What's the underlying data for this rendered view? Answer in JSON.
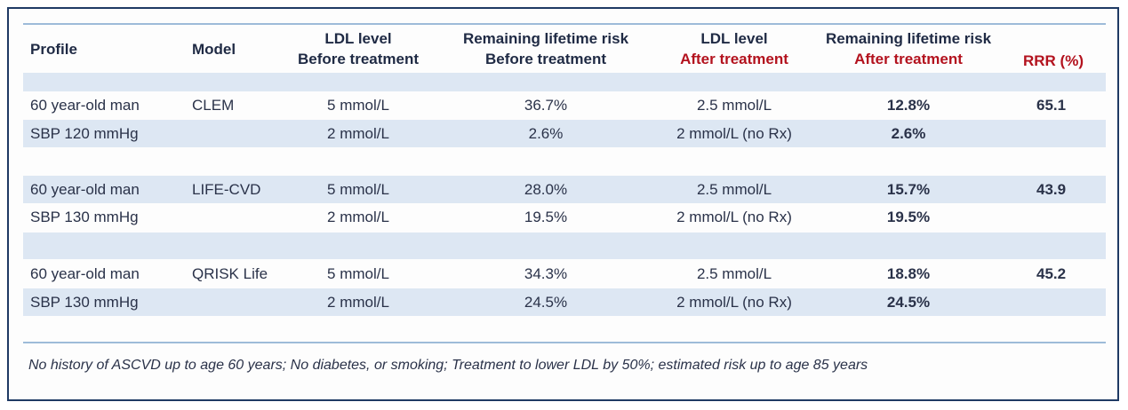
{
  "headers": {
    "profile": "Profile",
    "model": "Model",
    "ldl_before_l1": "LDL level",
    "ldl_before_l2": "Before treatment",
    "risk_before_l1": "Remaining lifetime risk",
    "risk_before_l2": "Before treatment",
    "ldl_after_l1": "LDL level",
    "ldl_after_l2": "After treatment",
    "risk_after_l1": "Remaining lifetime risk",
    "risk_after_l2": "After treatment",
    "rrr": "RRR (%)"
  },
  "rows": [
    {
      "profile": "60 year-old man",
      "model": "CLEM",
      "ldl_before": "5 mmol/L",
      "risk_before": "36.7%",
      "ldl_after": "2.5 mmol/L",
      "risk_after": "12.8%",
      "rrr": "65.1"
    },
    {
      "profile": "SBP 120 mmHg",
      "model": "",
      "ldl_before": "2 mmol/L",
      "risk_before": "2.6%",
      "ldl_after": "2 mmol/L (no Rx)",
      "risk_after": "2.6%",
      "rrr": ""
    },
    {
      "profile": "60 year-old man",
      "model": "LIFE-CVD",
      "ldl_before": "5 mmol/L",
      "risk_before": "28.0%",
      "ldl_after": "2.5 mmol/L",
      "risk_after": "15.7%",
      "rrr": "43.9"
    },
    {
      "profile": "SBP 130 mmHg",
      "model": "",
      "ldl_before": "2 mmol/L",
      "risk_before": "19.5%",
      "ldl_after": "2 mmol/L (no Rx)",
      "risk_after": "19.5%",
      "rrr": ""
    },
    {
      "profile": "60 year-old man",
      "model": "QRISK Life",
      "ldl_before": "5 mmol/L",
      "risk_before": "34.3%",
      "ldl_after": "2.5 mmol/L",
      "risk_after": "18.8%",
      "rrr": "45.2"
    },
    {
      "profile": "SBP 130 mmHg",
      "model": "",
      "ldl_before": "2 mmol/L",
      "risk_before": "24.5%",
      "ldl_after": "2 mmol/L (no Rx)",
      "risk_after": "24.5%",
      "rrr": ""
    }
  ],
  "footnote": "No history of ASCVD up to age 60 years; No diabetes, or smoking; Treatment to lower LDL by 50%; estimated risk up to age 85 years",
  "colors": {
    "red": "#b3121e",
    "navy": "#1d2a52",
    "band": "#dde7f3",
    "rule": "#9dbbd9"
  }
}
